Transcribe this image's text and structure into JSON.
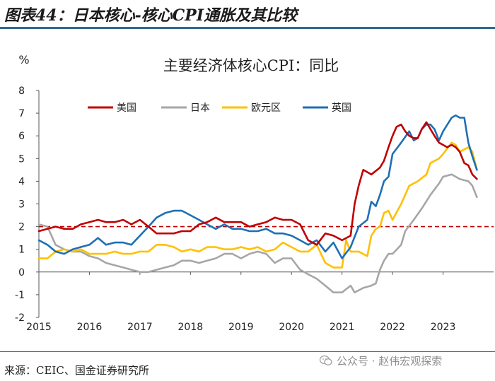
{
  "header": {
    "title": "图表44：日本核心-核心CPI通胀及其比较"
  },
  "source": "来源：CEIC、国金证券研究所",
  "watermark": "公众号 · 赵伟宏观探索",
  "colors": {
    "us": "#c00000",
    "japan": "#a6a6a6",
    "euro": "#ffc000",
    "uk": "#1f6fb4",
    "ref": "#c00000"
  },
  "chart_data": {
    "type": "line",
    "title": "主要经济体核心CPI：同比",
    "ylabel": "%",
    "xlabel": "",
    "ylim": [
      -2,
      8
    ],
    "xlim": [
      2015.0,
      2023.67
    ],
    "yticks": [
      -2,
      -1,
      0,
      1,
      2,
      3,
      4,
      5,
      6,
      7,
      8
    ],
    "xticks": [
      "2015",
      "2016",
      "2017",
      "2018",
      "2019",
      "2020",
      "2021",
      "2022",
      "2023"
    ],
    "legend": "top-left",
    "reference_line": {
      "y": 2,
      "style": "dashed"
    },
    "series": [
      {
        "name": "美国",
        "key": "us",
        "points": [
          [
            2015.0,
            1.8
          ],
          [
            2015.17,
            1.9
          ],
          [
            2015.33,
            2.0
          ],
          [
            2015.5,
            1.9
          ],
          [
            2015.67,
            1.9
          ],
          [
            2015.83,
            2.1
          ],
          [
            2016.0,
            2.2
          ],
          [
            2016.17,
            2.3
          ],
          [
            2016.33,
            2.2
          ],
          [
            2016.5,
            2.2
          ],
          [
            2016.67,
            2.3
          ],
          [
            2016.83,
            2.1
          ],
          [
            2017.0,
            2.3
          ],
          [
            2017.17,
            2.0
          ],
          [
            2017.33,
            1.7
          ],
          [
            2017.5,
            1.7
          ],
          [
            2017.67,
            1.7
          ],
          [
            2017.83,
            1.8
          ],
          [
            2018.0,
            1.8
          ],
          [
            2018.17,
            2.1
          ],
          [
            2018.33,
            2.2
          ],
          [
            2018.5,
            2.4
          ],
          [
            2018.67,
            2.2
          ],
          [
            2018.83,
            2.2
          ],
          [
            2019.0,
            2.2
          ],
          [
            2019.17,
            2.0
          ],
          [
            2019.33,
            2.1
          ],
          [
            2019.5,
            2.2
          ],
          [
            2019.67,
            2.4
          ],
          [
            2019.83,
            2.3
          ],
          [
            2020.0,
            2.3
          ],
          [
            2020.17,
            2.1
          ],
          [
            2020.33,
            1.4
          ],
          [
            2020.5,
            1.2
          ],
          [
            2020.67,
            1.7
          ],
          [
            2020.83,
            1.6
          ],
          [
            2021.0,
            1.4
          ],
          [
            2021.17,
            1.6
          ],
          [
            2021.25,
            3.0
          ],
          [
            2021.33,
            3.8
          ],
          [
            2021.42,
            4.5
          ],
          [
            2021.58,
            4.3
          ],
          [
            2021.75,
            4.6
          ],
          [
            2021.83,
            4.9
          ],
          [
            2021.92,
            5.5
          ],
          [
            2022.0,
            6.0
          ],
          [
            2022.08,
            6.4
          ],
          [
            2022.17,
            6.5
          ],
          [
            2022.25,
            6.2
          ],
          [
            2022.33,
            6.0
          ],
          [
            2022.42,
            5.9
          ],
          [
            2022.5,
            5.9
          ],
          [
            2022.58,
            6.3
          ],
          [
            2022.67,
            6.6
          ],
          [
            2022.75,
            6.3
          ],
          [
            2022.83,
            6.0
          ],
          [
            2022.92,
            5.7
          ],
          [
            2023.0,
            5.6
          ],
          [
            2023.08,
            5.5
          ],
          [
            2023.17,
            5.6
          ],
          [
            2023.25,
            5.5
          ],
          [
            2023.33,
            5.3
          ],
          [
            2023.42,
            4.8
          ],
          [
            2023.5,
            4.7
          ],
          [
            2023.58,
            4.3
          ],
          [
            2023.67,
            4.1
          ]
        ]
      },
      {
        "name": "日本",
        "key": "japan",
        "points": [
          [
            2015.0,
            2.1
          ],
          [
            2015.17,
            2.0
          ],
          [
            2015.33,
            1.2
          ],
          [
            2015.5,
            1.0
          ],
          [
            2015.67,
            0.9
          ],
          [
            2015.83,
            0.9
          ],
          [
            2016.0,
            0.7
          ],
          [
            2016.17,
            0.6
          ],
          [
            2016.33,
            0.4
          ],
          [
            2016.5,
            0.3
          ],
          [
            2016.67,
            0.2
          ],
          [
            2016.83,
            0.1
          ],
          [
            2017.0,
            0.0
          ],
          [
            2017.17,
            0.0
          ],
          [
            2017.33,
            0.1
          ],
          [
            2017.5,
            0.2
          ],
          [
            2017.67,
            0.3
          ],
          [
            2017.83,
            0.5
          ],
          [
            2018.0,
            0.5
          ],
          [
            2018.17,
            0.4
          ],
          [
            2018.33,
            0.5
          ],
          [
            2018.5,
            0.6
          ],
          [
            2018.67,
            0.8
          ],
          [
            2018.83,
            0.8
          ],
          [
            2019.0,
            0.6
          ],
          [
            2019.17,
            0.8
          ],
          [
            2019.33,
            0.9
          ],
          [
            2019.5,
            0.8
          ],
          [
            2019.67,
            0.4
          ],
          [
            2019.83,
            0.6
          ],
          [
            2020.0,
            0.6
          ],
          [
            2020.17,
            0.1
          ],
          [
            2020.33,
            -0.1
          ],
          [
            2020.5,
            -0.3
          ],
          [
            2020.67,
            -0.6
          ],
          [
            2020.83,
            -0.9
          ],
          [
            2021.0,
            -0.9
          ],
          [
            2021.17,
            -0.6
          ],
          [
            2021.25,
            -0.9
          ],
          [
            2021.42,
            -0.7
          ],
          [
            2021.58,
            -0.6
          ],
          [
            2021.67,
            -0.5
          ],
          [
            2021.75,
            0.1
          ],
          [
            2021.83,
            0.5
          ],
          [
            2021.92,
            0.8
          ],
          [
            2022.0,
            0.8
          ],
          [
            2022.17,
            1.2
          ],
          [
            2022.25,
            1.8
          ],
          [
            2022.42,
            2.3
          ],
          [
            2022.58,
            2.8
          ],
          [
            2022.75,
            3.4
          ],
          [
            2022.92,
            3.9
          ],
          [
            2023.0,
            4.2
          ],
          [
            2023.17,
            4.3
          ],
          [
            2023.33,
            4.1
          ],
          [
            2023.5,
            4.0
          ],
          [
            2023.58,
            3.8
          ],
          [
            2023.67,
            3.3
          ]
        ]
      },
      {
        "name": "欧元区",
        "key": "euro",
        "points": [
          [
            2015.0,
            0.6
          ],
          [
            2015.17,
            0.6
          ],
          [
            2015.33,
            0.9
          ],
          [
            2015.5,
            1.0
          ],
          [
            2015.67,
            0.9
          ],
          [
            2015.83,
            1.0
          ],
          [
            2016.0,
            0.8
          ],
          [
            2016.17,
            0.8
          ],
          [
            2016.33,
            0.8
          ],
          [
            2016.5,
            0.9
          ],
          [
            2016.67,
            0.8
          ],
          [
            2016.83,
            0.8
          ],
          [
            2017.0,
            0.9
          ],
          [
            2017.17,
            0.9
          ],
          [
            2017.33,
            1.2
          ],
          [
            2017.5,
            1.2
          ],
          [
            2017.67,
            1.1
          ],
          [
            2017.83,
            0.9
          ],
          [
            2018.0,
            1.0
          ],
          [
            2018.17,
            0.9
          ],
          [
            2018.33,
            1.1
          ],
          [
            2018.5,
            1.1
          ],
          [
            2018.67,
            1.0
          ],
          [
            2018.83,
            1.0
          ],
          [
            2019.0,
            1.1
          ],
          [
            2019.17,
            1.0
          ],
          [
            2019.33,
            1.1
          ],
          [
            2019.5,
            0.9
          ],
          [
            2019.67,
            1.0
          ],
          [
            2019.83,
            1.3
          ],
          [
            2020.0,
            1.1
          ],
          [
            2020.17,
            0.9
          ],
          [
            2020.33,
            0.9
          ],
          [
            2020.5,
            1.2
          ],
          [
            2020.67,
            0.4
          ],
          [
            2020.83,
            0.2
          ],
          [
            2021.0,
            0.2
          ],
          [
            2021.08,
            1.4
          ],
          [
            2021.17,
            0.9
          ],
          [
            2021.33,
            0.9
          ],
          [
            2021.5,
            0.7
          ],
          [
            2021.58,
            1.6
          ],
          [
            2021.67,
            1.9
          ],
          [
            2021.75,
            2.0
          ],
          [
            2021.83,
            2.6
          ],
          [
            2021.92,
            2.7
          ],
          [
            2022.0,
            2.3
          ],
          [
            2022.17,
            3.0
          ],
          [
            2022.33,
            3.8
          ],
          [
            2022.5,
            4.0
          ],
          [
            2022.67,
            4.3
          ],
          [
            2022.75,
            4.8
          ],
          [
            2022.92,
            5.0
          ],
          [
            2023.0,
            5.2
          ],
          [
            2023.17,
            5.7
          ],
          [
            2023.25,
            5.6
          ],
          [
            2023.33,
            5.3
          ],
          [
            2023.5,
            5.5
          ],
          [
            2023.58,
            5.3
          ],
          [
            2023.67,
            4.5
          ]
        ]
      },
      {
        "name": "英国",
        "key": "uk",
        "points": [
          [
            2015.0,
            1.4
          ],
          [
            2015.17,
            1.2
          ],
          [
            2015.33,
            0.9
          ],
          [
            2015.5,
            0.8
          ],
          [
            2015.67,
            1.0
          ],
          [
            2015.83,
            1.1
          ],
          [
            2016.0,
            1.2
          ],
          [
            2016.17,
            1.5
          ],
          [
            2016.33,
            1.2
          ],
          [
            2016.5,
            1.3
          ],
          [
            2016.67,
            1.3
          ],
          [
            2016.83,
            1.2
          ],
          [
            2017.0,
            1.6
          ],
          [
            2017.17,
            2.0
          ],
          [
            2017.33,
            2.4
          ],
          [
            2017.5,
            2.6
          ],
          [
            2017.67,
            2.7
          ],
          [
            2017.83,
            2.7
          ],
          [
            2018.0,
            2.5
          ],
          [
            2018.17,
            2.3
          ],
          [
            2018.33,
            2.1
          ],
          [
            2018.5,
            1.9
          ],
          [
            2018.67,
            2.1
          ],
          [
            2018.83,
            1.9
          ],
          [
            2019.0,
            1.9
          ],
          [
            2019.17,
            1.8
          ],
          [
            2019.33,
            1.8
          ],
          [
            2019.5,
            1.9
          ],
          [
            2019.67,
            1.7
          ],
          [
            2019.83,
            1.7
          ],
          [
            2020.0,
            1.6
          ],
          [
            2020.17,
            1.4
          ],
          [
            2020.33,
            1.2
          ],
          [
            2020.5,
            1.4
          ],
          [
            2020.67,
            0.9
          ],
          [
            2020.83,
            1.3
          ],
          [
            2021.0,
            0.6
          ],
          [
            2021.17,
            1.1
          ],
          [
            2021.33,
            2.0
          ],
          [
            2021.5,
            2.3
          ],
          [
            2021.58,
            3.1
          ],
          [
            2021.67,
            2.9
          ],
          [
            2021.75,
            3.4
          ],
          [
            2021.83,
            4.0
          ],
          [
            2021.92,
            4.2
          ],
          [
            2022.0,
            5.2
          ],
          [
            2022.17,
            5.7
          ],
          [
            2022.33,
            6.2
          ],
          [
            2022.42,
            5.8
          ],
          [
            2022.5,
            5.9
          ],
          [
            2022.58,
            6.3
          ],
          [
            2022.67,
            6.5
          ],
          [
            2022.75,
            6.5
          ],
          [
            2022.83,
            6.3
          ],
          [
            2022.92,
            5.8
          ],
          [
            2023.0,
            6.2
          ],
          [
            2023.17,
            6.8
          ],
          [
            2023.25,
            6.9
          ],
          [
            2023.33,
            6.8
          ],
          [
            2023.42,
            6.8
          ],
          [
            2023.5,
            5.7
          ],
          [
            2023.58,
            5.1
          ],
          [
            2023.67,
            4.5
          ]
        ]
      }
    ]
  }
}
